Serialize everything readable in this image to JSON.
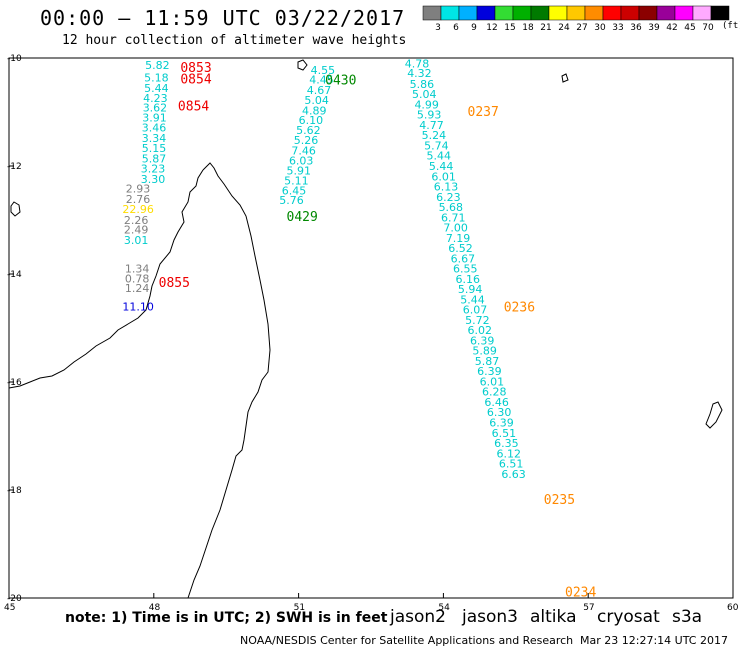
{
  "header": {
    "title": "00:00 – 11:59 UTC 03/22/2017",
    "subtitle": "12 hour collection of altimeter wave heights"
  },
  "color_scale": {
    "unit": "(ft)",
    "bins": [
      {
        "label": "3",
        "color": "#7f7f7f"
      },
      {
        "label": "6",
        "color": "#00e5e5"
      },
      {
        "label": "9",
        "color": "#00b0ff"
      },
      {
        "label": "12",
        "color": "#0000dd"
      },
      {
        "label": "15",
        "color": "#33dd33"
      },
      {
        "label": "18",
        "color": "#00b000"
      },
      {
        "label": "21",
        "color": "#007a00"
      },
      {
        "label": "24",
        "color": "#ffff00"
      },
      {
        "label": "27",
        "color": "#ffc800"
      },
      {
        "label": "30",
        "color": "#ff8c00"
      },
      {
        "label": "33",
        "color": "#ff0000"
      },
      {
        "label": "36",
        "color": "#cc0000"
      },
      {
        "label": "39",
        "color": "#8b0000"
      },
      {
        "label": "42",
        "color": "#990099"
      },
      {
        "label": "45",
        "color": "#ff00ff"
      },
      {
        "label": "70",
        "color": "#ffaaff"
      },
      {
        "label": "",
        "color": "#000000"
      }
    ]
  },
  "axes": {
    "lon_ticks": [
      "45",
      "48",
      "51",
      "54",
      "57",
      "60"
    ],
    "lat_ticks": [
      "-10",
      "-12",
      "-14",
      "-16",
      "-18",
      "-20"
    ]
  },
  "tracks": [
    {
      "time": "0853",
      "color": "#ee0000",
      "lon": 48.55,
      "lat": -10.17
    },
    {
      "time": "0854",
      "color": "#ee0000",
      "lon": 48.55,
      "lat": -10.38
    },
    {
      "time": "0854",
      "color": "#ee0000",
      "lon": 48.5,
      "lat": -10.88
    },
    {
      "time": "0855",
      "color": "#ee0000",
      "lon": 48.1,
      "lat": -14.15
    },
    {
      "time": "0430",
      "color": "#008800",
      "lon": 51.55,
      "lat": -10.4
    },
    {
      "time": "0429",
      "color": "#008800",
      "lon": 50.75,
      "lat": -12.93
    },
    {
      "time": "0237",
      "color": "#ff8800",
      "lon": 54.5,
      "lat": -10.98
    },
    {
      "time": "0236",
      "color": "#ff8800",
      "lon": 55.25,
      "lat": -14.6
    },
    {
      "time": "0235",
      "color": "#ff8800",
      "lon": 56.08,
      "lat": -18.17
    },
    {
      "time": "0234",
      "color": "#ff8800",
      "lon": 56.52,
      "lat": -19.88
    }
  ],
  "wave_values": [
    {
      "v": "5.82",
      "color": "#00cccc",
      "lon": 47.82,
      "lat": -10.13
    },
    {
      "v": "5.18",
      "color": "#00cccc",
      "lon": 47.8,
      "lat": -10.36
    },
    {
      "v": "5.44",
      "color": "#00cccc",
      "lon": 47.8,
      "lat": -10.56
    },
    {
      "v": "4.23",
      "color": "#00cccc",
      "lon": 47.78,
      "lat": -10.74
    },
    {
      "v": "3.62",
      "color": "#00cccc",
      "lon": 47.77,
      "lat": -10.92
    },
    {
      "v": "3.91",
      "color": "#00cccc",
      "lon": 47.76,
      "lat": -11.1
    },
    {
      "v": "3.46",
      "color": "#00cccc",
      "lon": 47.75,
      "lat": -11.29
    },
    {
      "v": "3.34",
      "color": "#00cccc",
      "lon": 47.75,
      "lat": -11.48
    },
    {
      "v": "5.15",
      "color": "#00cccc",
      "lon": 47.75,
      "lat": -11.67
    },
    {
      "v": "5.87",
      "color": "#00cccc",
      "lon": 47.75,
      "lat": -11.86
    },
    {
      "v": "3.23",
      "color": "#00cccc",
      "lon": 47.73,
      "lat": -12.05
    },
    {
      "v": "3.30",
      "color": "#00cccc",
      "lon": 47.73,
      "lat": -12.24
    },
    {
      "v": "2.93",
      "color": "#7f7f7f",
      "lon": 47.42,
      "lat": -12.42
    },
    {
      "v": "2.76",
      "color": "#7f7f7f",
      "lon": 47.42,
      "lat": -12.61
    },
    {
      "v": "22.96",
      "color": "#ffdd00",
      "lon": 47.35,
      "lat": -12.8
    },
    {
      "v": "2.26",
      "color": "#7f7f7f",
      "lon": 47.38,
      "lat": -13.0
    },
    {
      "v": "2.49",
      "color": "#7f7f7f",
      "lon": 47.38,
      "lat": -13.18
    },
    {
      "v": "3.01",
      "color": "#00cccc",
      "lon": 47.38,
      "lat": -13.37
    },
    {
      "v": "1.34",
      "color": "#7f7f7f",
      "lon": 47.4,
      "lat": -13.9
    },
    {
      "v": "0.78",
      "color": "#7f7f7f",
      "lon": 47.4,
      "lat": -14.08
    },
    {
      "v": "1.24",
      "color": "#7f7f7f",
      "lon": 47.4,
      "lat": -14.26
    },
    {
      "v": "11.10",
      "color": "#0000dd",
      "lon": 47.35,
      "lat": -14.6
    },
    {
      "v": "4.55",
      "color": "#00cccc",
      "lon": 51.25,
      "lat": -10.22
    },
    {
      "v": "4.45",
      "color": "#00cccc",
      "lon": 51.22,
      "lat": -10.4
    },
    {
      "v": "4.67",
      "color": "#00cccc",
      "lon": 51.17,
      "lat": -10.59
    },
    {
      "v": "5.04",
      "color": "#00cccc",
      "lon": 51.12,
      "lat": -10.78
    },
    {
      "v": "4.89",
      "color": "#00cccc",
      "lon": 51.07,
      "lat": -10.97
    },
    {
      "v": "6.10",
      "color": "#00cccc",
      "lon": 51.0,
      "lat": -11.15
    },
    {
      "v": "5.62",
      "color": "#00cccc",
      "lon": 50.95,
      "lat": -11.33
    },
    {
      "v": "5.26",
      "color": "#00cccc",
      "lon": 50.9,
      "lat": -11.52
    },
    {
      "v": "7.46",
      "color": "#00cccc",
      "lon": 50.85,
      "lat": -11.71
    },
    {
      "v": "6.03",
      "color": "#00cccc",
      "lon": 50.8,
      "lat": -11.9
    },
    {
      "v": "5.91",
      "color": "#00cccc",
      "lon": 50.75,
      "lat": -12.08
    },
    {
      "v": "5.11",
      "color": "#00cccc",
      "lon": 50.7,
      "lat": -12.27
    },
    {
      "v": "6.45",
      "color": "#00cccc",
      "lon": 50.65,
      "lat": -12.45
    },
    {
      "v": "5.76",
      "color": "#00cccc",
      "lon": 50.6,
      "lat": -12.63
    },
    {
      "v": "4.78",
      "color": "#00cccc",
      "lon": 53.2,
      "lat": -10.1
    },
    {
      "v": "4.32",
      "color": "#00cccc",
      "lon": 53.25,
      "lat": -10.28
    },
    {
      "v": "5.86",
      "color": "#00cccc",
      "lon": 53.3,
      "lat": -10.48
    },
    {
      "v": "5.04",
      "color": "#00cccc",
      "lon": 53.35,
      "lat": -10.67
    },
    {
      "v": "4.99",
      "color": "#00cccc",
      "lon": 53.4,
      "lat": -10.86
    },
    {
      "v": "5.93",
      "color": "#00cccc",
      "lon": 53.45,
      "lat": -11.05
    },
    {
      "v": "4.77",
      "color": "#00cccc",
      "lon": 53.5,
      "lat": -11.24
    },
    {
      "v": "5.24",
      "color": "#00cccc",
      "lon": 53.55,
      "lat": -11.43
    },
    {
      "v": "5.74",
      "color": "#00cccc",
      "lon": 53.6,
      "lat": -11.62
    },
    {
      "v": "5.44",
      "color": "#00cccc",
      "lon": 53.65,
      "lat": -11.81
    },
    {
      "v": "5.44",
      "color": "#00cccc",
      "lon": 53.7,
      "lat": -12.0
    },
    {
      "v": "6.01",
      "color": "#00cccc",
      "lon": 53.75,
      "lat": -12.19
    },
    {
      "v": "6.13",
      "color": "#00cccc",
      "lon": 53.8,
      "lat": -12.38
    },
    {
      "v": "6.23",
      "color": "#00cccc",
      "lon": 53.85,
      "lat": -12.57
    },
    {
      "v": "5.68",
      "color": "#00cccc",
      "lon": 53.9,
      "lat": -12.76
    },
    {
      "v": "6.71",
      "color": "#00cccc",
      "lon": 53.95,
      "lat": -12.95
    },
    {
      "v": "7.00",
      "color": "#00cccc",
      "lon": 54.0,
      "lat": -13.14
    },
    {
      "v": "7.19",
      "color": "#00cccc",
      "lon": 54.05,
      "lat": -13.33
    },
    {
      "v": "6.52",
      "color": "#00cccc",
      "lon": 54.1,
      "lat": -13.52
    },
    {
      "v": "6.67",
      "color": "#00cccc",
      "lon": 54.15,
      "lat": -13.71
    },
    {
      "v": "6.55",
      "color": "#00cccc",
      "lon": 54.2,
      "lat": -13.9
    },
    {
      "v": "6.16",
      "color": "#00cccc",
      "lon": 54.25,
      "lat": -14.09
    },
    {
      "v": "5.94",
      "color": "#00cccc",
      "lon": 54.3,
      "lat": -14.28
    },
    {
      "v": "5.44",
      "color": "#00cccc",
      "lon": 54.35,
      "lat": -14.47
    },
    {
      "v": "6.07",
      "color": "#00cccc",
      "lon": 54.4,
      "lat": -14.66
    },
    {
      "v": "5.72",
      "color": "#00cccc",
      "lon": 54.45,
      "lat": -14.85
    },
    {
      "v": "6.02",
      "color": "#00cccc",
      "lon": 54.5,
      "lat": -15.04
    },
    {
      "v": "6.39",
      "color": "#00cccc",
      "lon": 54.55,
      "lat": -15.23
    },
    {
      "v": "5.89",
      "color": "#00cccc",
      "lon": 54.6,
      "lat": -15.42
    },
    {
      "v": "5.87",
      "color": "#00cccc",
      "lon": 54.65,
      "lat": -15.61
    },
    {
      "v": "6.39",
      "color": "#00cccc",
      "lon": 54.7,
      "lat": -15.8
    },
    {
      "v": "6.01",
      "color": "#00cccc",
      "lon": 54.75,
      "lat": -15.99
    },
    {
      "v": "6.28",
      "color": "#00cccc",
      "lon": 54.8,
      "lat": -16.18
    },
    {
      "v": "6.46",
      "color": "#00cccc",
      "lon": 54.85,
      "lat": -16.37
    },
    {
      "v": "6.30",
      "color": "#00cccc",
      "lon": 54.9,
      "lat": -16.56
    },
    {
      "v": "6.39",
      "color": "#00cccc",
      "lon": 54.95,
      "lat": -16.75
    },
    {
      "v": "6.51",
      "color": "#00cccc",
      "lon": 55.0,
      "lat": -16.94
    },
    {
      "v": "6.35",
      "color": "#00cccc",
      "lon": 55.05,
      "lat": -17.13
    },
    {
      "v": "6.12",
      "color": "#00cccc",
      "lon": 55.1,
      "lat": -17.32
    },
    {
      "v": "6.51",
      "color": "#00cccc",
      "lon": 55.15,
      "lat": -17.51
    },
    {
      "v": "6.63",
      "color": "#00cccc",
      "lon": 55.2,
      "lat": -17.7
    }
  ],
  "footer": {
    "note": "note: 1) Time is in UTC; 2) SWH is in feet",
    "satellites": [
      {
        "name": "jason2",
        "color": "#0000dd"
      },
      {
        "name": "jason3",
        "color": "#00aa00"
      },
      {
        "name": "altika",
        "color": "#ff8800"
      },
      {
        "name": "cryosat",
        "color": "#ee0000"
      },
      {
        "name": "s3a",
        "color": "#8b0000"
      }
    ],
    "credit": "NOAA/NESDIS Center for Satellite Applications and Research",
    "timestamp": "Mar 23 12:27:14 UTC 2017"
  }
}
